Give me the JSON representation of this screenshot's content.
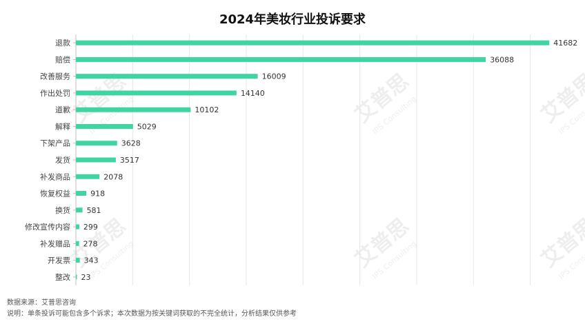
{
  "chart_data": {
    "type": "bar",
    "orientation": "horizontal",
    "title": "2024年美妆行业投诉要求",
    "categories": [
      "退款",
      "赔偿",
      "改善服务",
      "作出处罚",
      "道歉",
      "解释",
      "下架产品",
      "发货",
      "补发商品",
      "恢复权益",
      "换货",
      "修改宣传内容",
      "补发赠品",
      "开发票",
      "整改"
    ],
    "values": [
      41682,
      36088,
      16009,
      14140,
      10102,
      5029,
      3628,
      3517,
      2078,
      918,
      581,
      299,
      278,
      343,
      23
    ],
    "xlim": [
      0,
      43000
    ],
    "xlabel": "",
    "ylabel": "",
    "grid": "vertical",
    "legend": "none",
    "data_labels": true,
    "bar_color": "#3fd4a2",
    "grid_color": "#e6e6e6"
  },
  "footnotes": {
    "source": "数据来源：艾普思咨询",
    "note": "说明：单条投诉可能包含多个诉求；本次数据为按关键词获取的不完全统计，分析结果仅供参考"
  },
  "watermark": {
    "text": "艾普思",
    "subtext": "IPS Consulting"
  }
}
